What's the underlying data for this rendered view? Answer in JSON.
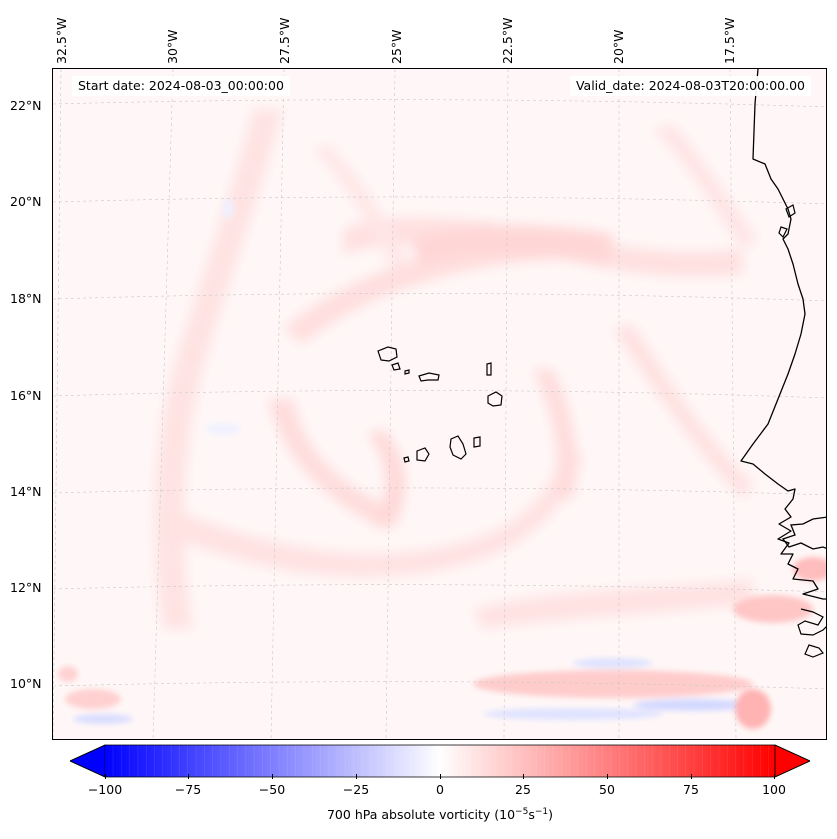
{
  "header": {
    "start_date": "Start date: 2024-08-03_00:00:00",
    "valid_date": "Valid_date: 2024-08-03T20:00:00.00"
  },
  "axes": {
    "longitudes": [
      "32.5°W",
      "30°W",
      "27.5°W",
      "25°W",
      "22.5°W",
      "20°W",
      "17.5°W"
    ],
    "latitudes": [
      "22°N",
      "20°N",
      "18°N",
      "16°N",
      "14°N",
      "12°N",
      "10°N"
    ]
  },
  "colorbar": {
    "label_prefix": "700 hPa absolute vorticity (10",
    "label_exp1": "−5",
    "label_mid": "s",
    "label_exp2": "−1",
    "label_suffix": ")",
    "ticks": [
      "−100",
      "−75",
      "−50",
      "−25",
      "0",
      "25",
      "50",
      "75",
      "100"
    ],
    "min": -100,
    "max": 100,
    "negative_color": "#0000ff",
    "positive_color": "#ff0000"
  },
  "colors": {
    "background_field": "#fff5f5",
    "coastline": "#000000",
    "gridline": "#c8c8c8"
  }
}
